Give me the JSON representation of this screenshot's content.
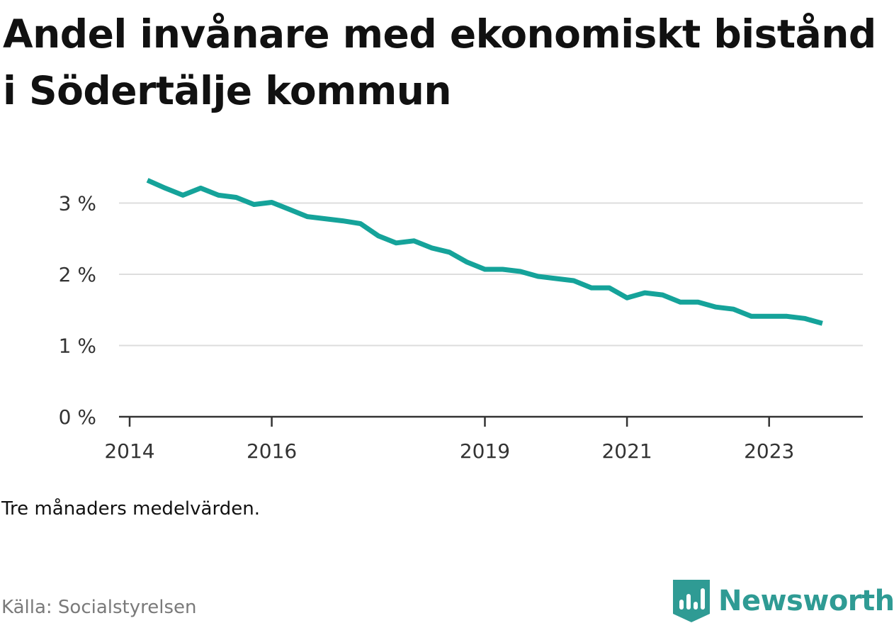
{
  "chart_data": {
    "type": "line",
    "title": "Andel invånare med ekonomiskt bistånd i Södertälje kommun",
    "note": "Tre månaders medelvärden.",
    "source": "Källa: Socialstyrelsen",
    "brand": "Newsworthy",
    "xlabel": "",
    "ylabel": "",
    "x_ticks": [
      "2014",
      "2016",
      "2019",
      "2021",
      "2023"
    ],
    "y_ticks": [
      "0 %",
      "1 %",
      "2 %",
      "3 %"
    ],
    "y_tick_values": [
      0,
      1,
      2,
      3
    ],
    "ylim": [
      0,
      3.5
    ],
    "grid": true,
    "series": [
      {
        "color": "#15a39a",
        "points": [
          {
            "x": "2014-04",
            "y": 3.32
          },
          {
            "x": "2014-07",
            "y": 3.21
          },
          {
            "x": "2014-10",
            "y": 3.11
          },
          {
            "x": "2015-01",
            "y": 3.21
          },
          {
            "x": "2015-04",
            "y": 3.11
          },
          {
            "x": "2015-07",
            "y": 3.08
          },
          {
            "x": "2015-10",
            "y": 2.98
          },
          {
            "x": "2016-01",
            "y": 3.01
          },
          {
            "x": "2016-04",
            "y": 2.91
          },
          {
            "x": "2016-07",
            "y": 2.81
          },
          {
            "x": "2016-10",
            "y": 2.78
          },
          {
            "x": "2017-01",
            "y": 2.75
          },
          {
            "x": "2017-04",
            "y": 2.71
          },
          {
            "x": "2017-07",
            "y": 2.54
          },
          {
            "x": "2017-10",
            "y": 2.44
          },
          {
            "x": "2018-01",
            "y": 2.47
          },
          {
            "x": "2018-04",
            "y": 2.37
          },
          {
            "x": "2018-07",
            "y": 2.31
          },
          {
            "x": "2018-10",
            "y": 2.17
          },
          {
            "x": "2019-01",
            "y": 2.07
          },
          {
            "x": "2019-04",
            "y": 2.07
          },
          {
            "x": "2019-07",
            "y": 2.04
          },
          {
            "x": "2019-10",
            "y": 1.97
          },
          {
            "x": "2020-01",
            "y": 1.94
          },
          {
            "x": "2020-04",
            "y": 1.91
          },
          {
            "x": "2020-07",
            "y": 1.81
          },
          {
            "x": "2020-10",
            "y": 1.81
          },
          {
            "x": "2021-01",
            "y": 1.67
          },
          {
            "x": "2021-04",
            "y": 1.74
          },
          {
            "x": "2021-07",
            "y": 1.71
          },
          {
            "x": "2021-10",
            "y": 1.61
          },
          {
            "x": "2022-01",
            "y": 1.61
          },
          {
            "x": "2022-04",
            "y": 1.54
          },
          {
            "x": "2022-07",
            "y": 1.51
          },
          {
            "x": "2022-10",
            "y": 1.41
          },
          {
            "x": "2023-01",
            "y": 1.41
          },
          {
            "x": "2023-04",
            "y": 1.41
          },
          {
            "x": "2023-07",
            "y": 1.38
          },
          {
            "x": "2023-10",
            "y": 1.31
          }
        ]
      }
    ]
  }
}
